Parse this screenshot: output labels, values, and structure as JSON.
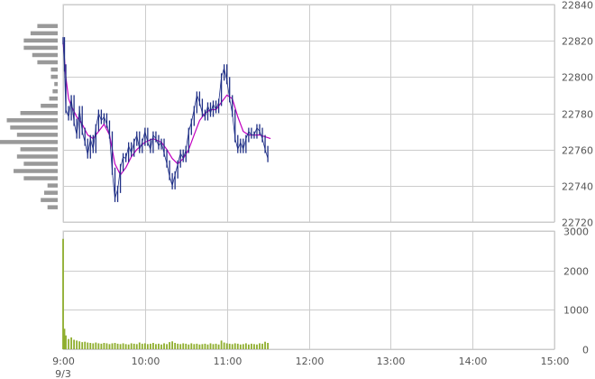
{
  "chart_data": [
    {
      "type": "candlestick",
      "title": "",
      "x_ticks": [
        "9:00",
        "10:00",
        "11:00",
        "12:00",
        "13:00",
        "14:00",
        "15:00"
      ],
      "date_label": "9/3",
      "ylim": [
        22720,
        22840
      ],
      "y_ticks": [
        22720,
        22740,
        22760,
        22780,
        22800,
        22820,
        22840
      ],
      "grid": true,
      "colors": {
        "candle": "#1f2f86",
        "moving_average": "#c000c0",
        "volume_profile": "#999999"
      },
      "price_series": [
        {
          "t": "9:00",
          "v": 22820
        },
        {
          "t": "9:01",
          "v": 22805
        },
        {
          "t": "9:02",
          "v": 22782
        },
        {
          "t": "9:04",
          "v": 22778
        },
        {
          "t": "9:06",
          "v": 22788
        },
        {
          "t": "9:08",
          "v": 22775
        },
        {
          "t": "9:10",
          "v": 22768
        },
        {
          "t": "9:12",
          "v": 22782
        },
        {
          "t": "9:14",
          "v": 22770
        },
        {
          "t": "9:16",
          "v": 22764
        },
        {
          "t": "9:18",
          "v": 22757
        },
        {
          "t": "9:20",
          "v": 22766
        },
        {
          "t": "9:22",
          "v": 22760
        },
        {
          "t": "9:24",
          "v": 22772
        },
        {
          "t": "9:26",
          "v": 22780
        },
        {
          "t": "9:28",
          "v": 22776
        },
        {
          "t": "9:30",
          "v": 22778
        },
        {
          "t": "9:32",
          "v": 22774
        },
        {
          "t": "9:34",
          "v": 22768
        },
        {
          "t": "9:36",
          "v": 22748
        },
        {
          "t": "9:38",
          "v": 22733
        },
        {
          "t": "9:40",
          "v": 22738
        },
        {
          "t": "9:42",
          "v": 22750
        },
        {
          "t": "9:44",
          "v": 22756
        },
        {
          "t": "9:46",
          "v": 22755
        },
        {
          "t": "9:48",
          "v": 22762
        },
        {
          "t": "9:50",
          "v": 22758
        },
        {
          "t": "9:52",
          "v": 22764
        },
        {
          "t": "9:54",
          "v": 22768
        },
        {
          "t": "9:56",
          "v": 22760
        },
        {
          "t": "9:58",
          "v": 22764
        },
        {
          "t": "10:00",
          "v": 22770
        },
        {
          "t": "10:02",
          "v": 22764
        },
        {
          "t": "10:04",
          "v": 22760
        },
        {
          "t": "10:06",
          "v": 22768
        },
        {
          "t": "10:08",
          "v": 22766
        },
        {
          "t": "10:10",
          "v": 22762
        },
        {
          "t": "10:12",
          "v": 22764
        },
        {
          "t": "10:14",
          "v": 22758
        },
        {
          "t": "10:16",
          "v": 22752
        },
        {
          "t": "10:18",
          "v": 22745
        },
        {
          "t": "10:20",
          "v": 22740
        },
        {
          "t": "10:22",
          "v": 22746
        },
        {
          "t": "10:24",
          "v": 22752
        },
        {
          "t": "10:26",
          "v": 22758
        },
        {
          "t": "10:28",
          "v": 22755
        },
        {
          "t": "10:30",
          "v": 22760
        },
        {
          "t": "10:32",
          "v": 22770
        },
        {
          "t": "10:34",
          "v": 22775
        },
        {
          "t": "10:36",
          "v": 22782
        },
        {
          "t": "10:38",
          "v": 22790
        },
        {
          "t": "10:40",
          "v": 22786
        },
        {
          "t": "10:42",
          "v": 22780
        },
        {
          "t": "10:44",
          "v": 22778
        },
        {
          "t": "10:46",
          "v": 22784
        },
        {
          "t": "10:48",
          "v": 22780
        },
        {
          "t": "10:50",
          "v": 22785
        },
        {
          "t": "10:52",
          "v": 22782
        },
        {
          "t": "10:54",
          "v": 22786
        },
        {
          "t": "10:56",
          "v": 22800
        },
        {
          "t": "10:58",
          "v": 22805
        },
        {
          "t": "11:00",
          "v": 22798
        },
        {
          "t": "11:02",
          "v": 22788
        },
        {
          "t": "11:04",
          "v": 22780
        },
        {
          "t": "11:06",
          "v": 22766
        },
        {
          "t": "11:08",
          "v": 22760
        },
        {
          "t": "11:10",
          "v": 22764
        },
        {
          "t": "11:12",
          "v": 22760
        },
        {
          "t": "11:14",
          "v": 22766
        },
        {
          "t": "11:16",
          "v": 22770
        },
        {
          "t": "11:18",
          "v": 22768
        },
        {
          "t": "11:20",
          "v": 22768
        },
        {
          "t": "11:22",
          "v": 22772
        },
        {
          "t": "11:24",
          "v": 22770
        },
        {
          "t": "11:26",
          "v": 22766
        },
        {
          "t": "11:28",
          "v": 22760
        },
        {
          "t": "11:30",
          "v": 22755
        }
      ],
      "moving_average": [
        {
          "t": "9:00",
          "v": 22820
        },
        {
          "t": "9:02",
          "v": 22800
        },
        {
          "t": "9:04",
          "v": 22788
        },
        {
          "t": "9:06",
          "v": 22784
        },
        {
          "t": "9:10",
          "v": 22778
        },
        {
          "t": "9:14",
          "v": 22774
        },
        {
          "t": "9:18",
          "v": 22768
        },
        {
          "t": "9:22",
          "v": 22766
        },
        {
          "t": "9:26",
          "v": 22770
        },
        {
          "t": "9:30",
          "v": 22774
        },
        {
          "t": "9:34",
          "v": 22768
        },
        {
          "t": "9:38",
          "v": 22752
        },
        {
          "t": "9:42",
          "v": 22746
        },
        {
          "t": "9:46",
          "v": 22750
        },
        {
          "t": "9:50",
          "v": 22756
        },
        {
          "t": "9:54",
          "v": 22760
        },
        {
          "t": "10:00",
          "v": 22764
        },
        {
          "t": "10:06",
          "v": 22766
        },
        {
          "t": "10:12",
          "v": 22764
        },
        {
          "t": "10:16",
          "v": 22760
        },
        {
          "t": "10:20",
          "v": 22755
        },
        {
          "t": "10:24",
          "v": 22752
        },
        {
          "t": "10:28",
          "v": 22755
        },
        {
          "t": "10:32",
          "v": 22760
        },
        {
          "t": "10:36",
          "v": 22768
        },
        {
          "t": "10:40",
          "v": 22776
        },
        {
          "t": "10:44",
          "v": 22780
        },
        {
          "t": "10:48",
          "v": 22782
        },
        {
          "t": "10:52",
          "v": 22782
        },
        {
          "t": "10:56",
          "v": 22786
        },
        {
          "t": "11:00",
          "v": 22790
        },
        {
          "t": "11:04",
          "v": 22788
        },
        {
          "t": "11:08",
          "v": 22778
        },
        {
          "t": "11:12",
          "v": 22770
        },
        {
          "t": "11:16",
          "v": 22768
        },
        {
          "t": "11:20",
          "v": 22768
        },
        {
          "t": "11:24",
          "v": 22768
        },
        {
          "t": "11:28",
          "v": 22767
        },
        {
          "t": "11:32",
          "v": 22766
        }
      ],
      "volume_profile": [
        {
          "price": 22828,
          "volume": 12
        },
        {
          "price": 22824,
          "volume": 16
        },
        {
          "price": 22820,
          "volume": 20
        },
        {
          "price": 22816,
          "volume": 20
        },
        {
          "price": 22812,
          "volume": 15
        },
        {
          "price": 22808,
          "volume": 12
        },
        {
          "price": 22804,
          "volume": 4
        },
        {
          "price": 22800,
          "volume": 4
        },
        {
          "price": 22796,
          "volume": 2
        },
        {
          "price": 22792,
          "volume": 3
        },
        {
          "price": 22788,
          "volume": 5
        },
        {
          "price": 22784,
          "volume": 10
        },
        {
          "price": 22780,
          "volume": 22
        },
        {
          "price": 22776,
          "volume": 30
        },
        {
          "price": 22772,
          "volume": 28
        },
        {
          "price": 22768,
          "volume": 24
        },
        {
          "price": 22764,
          "volume": 34
        },
        {
          "price": 22760,
          "volume": 22
        },
        {
          "price": 22756,
          "volume": 24
        },
        {
          "price": 22752,
          "volume": 20
        },
        {
          "price": 22748,
          "volume": 26
        },
        {
          "price": 22744,
          "volume": 20
        },
        {
          "price": 22740,
          "volume": 6
        },
        {
          "price": 22736,
          "volume": 8
        },
        {
          "price": 22732,
          "volume": 10
        },
        {
          "price": 22728,
          "volume": 6
        }
      ]
    },
    {
      "type": "bar",
      "title": "",
      "ylim": [
        0,
        3000
      ],
      "y_ticks": [
        0,
        1000,
        2000,
        3000
      ],
      "grid": true,
      "colors": {
        "bars": "#8fae2e"
      },
      "volume_series": [
        {
          "t": "9:00",
          "v": 2800
        },
        {
          "t": "9:01",
          "v": 520
        },
        {
          "t": "9:02",
          "v": 350
        },
        {
          "t": "9:04",
          "v": 260
        },
        {
          "t": "9:06",
          "v": 300
        },
        {
          "t": "9:08",
          "v": 240
        },
        {
          "t": "9:10",
          "v": 220
        },
        {
          "t": "9:12",
          "v": 200
        },
        {
          "t": "9:14",
          "v": 180
        },
        {
          "t": "9:16",
          "v": 190
        },
        {
          "t": "9:18",
          "v": 170
        },
        {
          "t": "9:20",
          "v": 160
        },
        {
          "t": "9:22",
          "v": 150
        },
        {
          "t": "9:24",
          "v": 170
        },
        {
          "t": "9:26",
          "v": 150
        },
        {
          "t": "9:28",
          "v": 140
        },
        {
          "t": "9:30",
          "v": 160
        },
        {
          "t": "9:32",
          "v": 150
        },
        {
          "t": "9:34",
          "v": 130
        },
        {
          "t": "9:36",
          "v": 150
        },
        {
          "t": "9:38",
          "v": 160
        },
        {
          "t": "9:40",
          "v": 140
        },
        {
          "t": "9:42",
          "v": 130
        },
        {
          "t": "9:44",
          "v": 150
        },
        {
          "t": "9:46",
          "v": 130
        },
        {
          "t": "9:48",
          "v": 120
        },
        {
          "t": "9:50",
          "v": 150
        },
        {
          "t": "9:52",
          "v": 140
        },
        {
          "t": "9:54",
          "v": 130
        },
        {
          "t": "9:56",
          "v": 170
        },
        {
          "t": "9:58",
          "v": 140
        },
        {
          "t": "10:00",
          "v": 150
        },
        {
          "t": "10:02",
          "v": 130
        },
        {
          "t": "10:04",
          "v": 140
        },
        {
          "t": "10:06",
          "v": 160
        },
        {
          "t": "10:08",
          "v": 130
        },
        {
          "t": "10:10",
          "v": 140
        },
        {
          "t": "10:12",
          "v": 120
        },
        {
          "t": "10:14",
          "v": 150
        },
        {
          "t": "10:16",
          "v": 130
        },
        {
          "t": "10:18",
          "v": 180
        },
        {
          "t": "10:20",
          "v": 200
        },
        {
          "t": "10:22",
          "v": 160
        },
        {
          "t": "10:24",
          "v": 140
        },
        {
          "t": "10:26",
          "v": 130
        },
        {
          "t": "10:28",
          "v": 150
        },
        {
          "t": "10:30",
          "v": 140
        },
        {
          "t": "10:32",
          "v": 120
        },
        {
          "t": "10:34",
          "v": 150
        },
        {
          "t": "10:36",
          "v": 130
        },
        {
          "t": "10:38",
          "v": 140
        },
        {
          "t": "10:40",
          "v": 120
        },
        {
          "t": "10:42",
          "v": 130
        },
        {
          "t": "10:44",
          "v": 140
        },
        {
          "t": "10:46",
          "v": 120
        },
        {
          "t": "10:48",
          "v": 150
        },
        {
          "t": "10:50",
          "v": 130
        },
        {
          "t": "10:52",
          "v": 140
        },
        {
          "t": "10:54",
          "v": 120
        },
        {
          "t": "10:56",
          "v": 220
        },
        {
          "t": "10:58",
          "v": 170
        },
        {
          "t": "11:00",
          "v": 150
        },
        {
          "t": "11:02",
          "v": 140
        },
        {
          "t": "11:04",
          "v": 130
        },
        {
          "t": "11:06",
          "v": 150
        },
        {
          "t": "11:08",
          "v": 140
        },
        {
          "t": "11:10",
          "v": 120
        },
        {
          "t": "11:12",
          "v": 130
        },
        {
          "t": "11:14",
          "v": 150
        },
        {
          "t": "11:16",
          "v": 120
        },
        {
          "t": "11:18",
          "v": 140
        },
        {
          "t": "11:20",
          "v": 130
        },
        {
          "t": "11:22",
          "v": 120
        },
        {
          "t": "11:24",
          "v": 150
        },
        {
          "t": "11:26",
          "v": 140
        },
        {
          "t": "11:28",
          "v": 190
        },
        {
          "t": "11:30",
          "v": 160
        }
      ]
    }
  ]
}
